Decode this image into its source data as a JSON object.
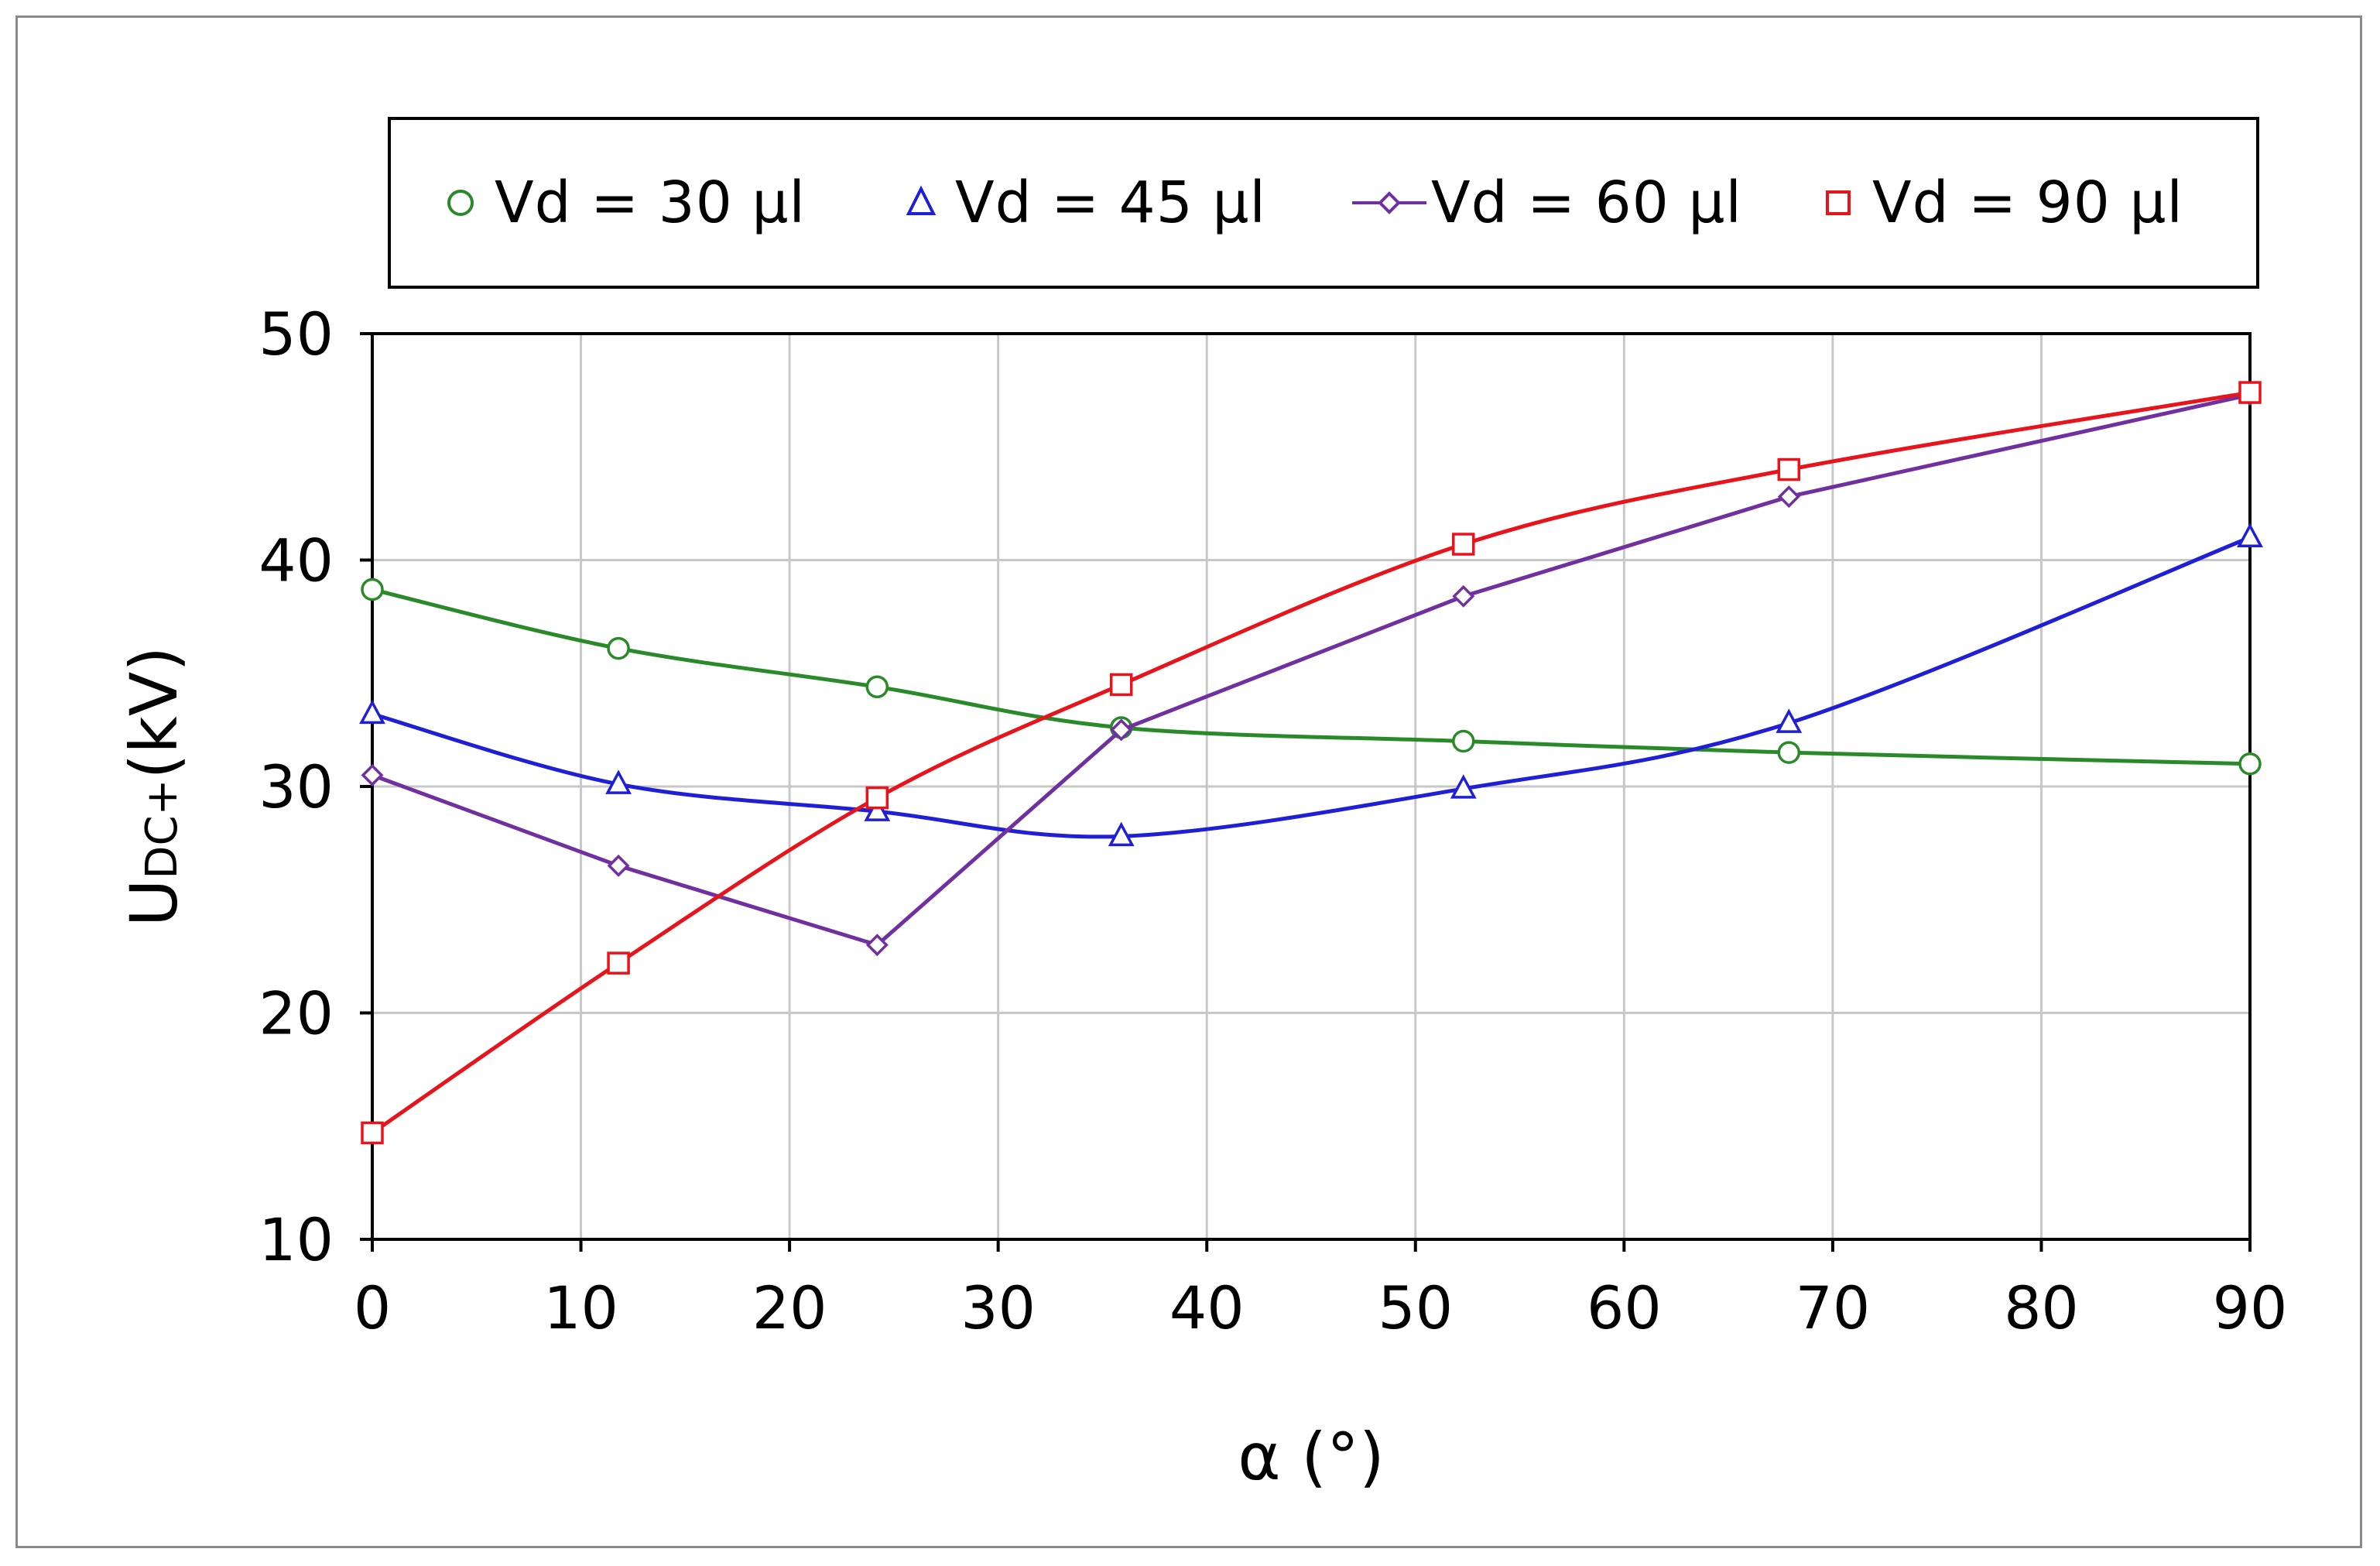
{
  "chart_data": {
    "type": "line",
    "title": "",
    "xlabel": "α (°)",
    "ylabel": "UDC+(kV)",
    "ylabel_main": "U",
    "ylabel_sub": "DC+",
    "ylabel_unit": "(kV)",
    "xlim": [
      0,
      90
    ],
    "ylim": [
      10,
      50
    ],
    "xticks": [
      "0",
      "10",
      "20",
      "30",
      "40",
      "50",
      "60",
      "70",
      "80",
      "90"
    ],
    "yticks": [
      "10",
      "20",
      "30",
      "40",
      "50"
    ],
    "grid": true,
    "legend_position": "top",
    "x": [
      0,
      11.8,
      24.2,
      35.9,
      52.3,
      67.9,
      90
    ],
    "series": [
      {
        "name": "Vd = 30 µl",
        "color": "#2a8a2a",
        "marker": "circle",
        "line": "smooth",
        "values": [
          38.7,
          36.1,
          34.4,
          32.6,
          32.0,
          31.5,
          31.0
        ]
      },
      {
        "name": "Vd = 45 µl",
        "color": "#1f1fd6",
        "marker": "triangle",
        "line": "smooth",
        "values": [
          33.2,
          30.1,
          28.9,
          27.8,
          29.9,
          32.8,
          41.0
        ]
      },
      {
        "name": "Vd = 60 µl",
        "color": "#7030a0",
        "marker": "diamond",
        "line": "straight",
        "values": [
          30.5,
          26.5,
          23.0,
          32.5,
          38.4,
          42.8,
          47.3
        ]
      },
      {
        "name": "Vd = 90 µl",
        "color": "#e8141c",
        "marker": "square",
        "line": "smooth",
        "values": [
          14.7,
          22.2,
          29.5,
          34.5,
          40.7,
          44.0,
          47.4
        ]
      }
    ]
  }
}
